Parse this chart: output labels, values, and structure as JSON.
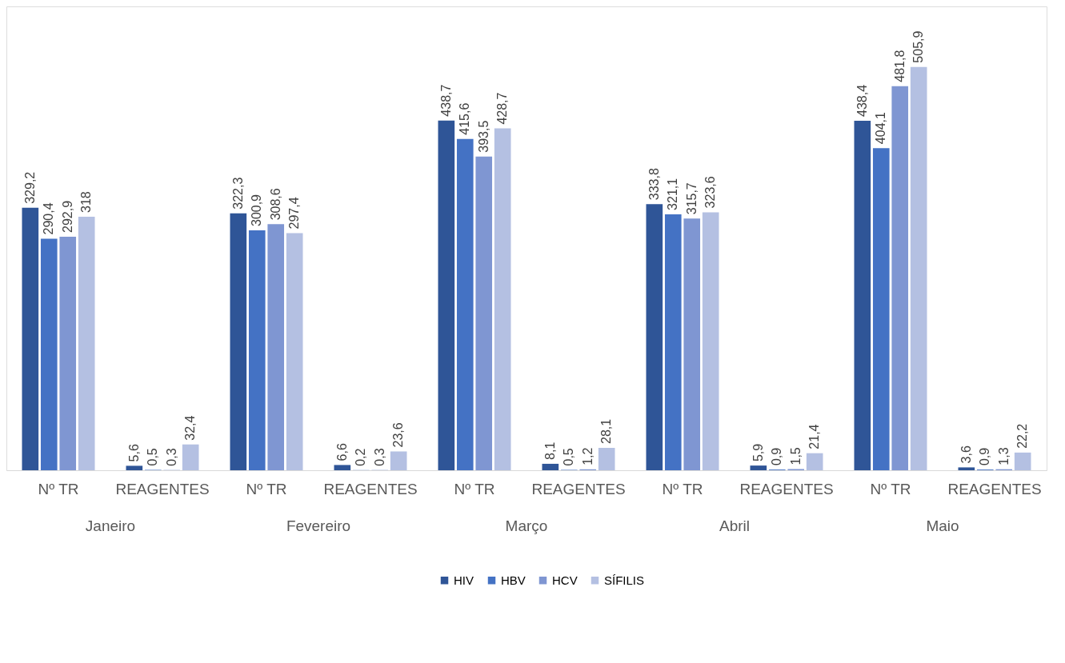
{
  "chart_data": {
    "type": "bar",
    "categories": [
      "Nº TR",
      "REAGENTES",
      "Nº TR",
      "REAGENTES",
      "Nº TR",
      "REAGENTES",
      "Nº TR",
      "REAGENTES",
      "Nº TR",
      "REAGENTES"
    ],
    "series": [
      {
        "name": "HIV",
        "color": "#2f5597",
        "values": [
          329.2,
          5.6,
          322.3,
          6.6,
          438.7,
          8.1,
          333.8,
          5.9,
          438.4,
          3.6
        ],
        "value_labels": [
          "329,2",
          "5,6",
          "322,3",
          "6,6",
          "438,7",
          "8,1",
          "333,8",
          "5,9",
          "438,4",
          "3,6"
        ]
      },
      {
        "name": "HBV",
        "color": "#4472c4",
        "values": [
          290.4,
          0.5,
          300.9,
          0.2,
          415.6,
          0.5,
          321.1,
          0.9,
          404.1,
          0.9
        ],
        "value_labels": [
          "290,4",
          "0,5",
          "300,9",
          "0,2",
          "415,6",
          "0,5",
          "321,1",
          "0,9",
          "404,1",
          "0,9"
        ]
      },
      {
        "name": "HCV",
        "color": "#7f96d2",
        "values": [
          292.9,
          0.3,
          308.6,
          0.3,
          393.5,
          1.2,
          315.7,
          1.5,
          481.8,
          1.3
        ],
        "value_labels": [
          "292,9",
          "0,3",
          "308,6",
          "0,3",
          "393,5",
          "1,2",
          "315,7",
          "1,5",
          "481,8",
          "1,3"
        ]
      },
      {
        "name": "SÍFILIS",
        "color": "#b4c0e2",
        "values": [
          318,
          32.4,
          297.4,
          23.6,
          428.7,
          28.1,
          323.6,
          21.4,
          505.9,
          22.2
        ],
        "value_labels": [
          "318",
          "32,4",
          "297,4",
          "23,6",
          "428,7",
          "28,1",
          "323,6",
          "21,4",
          "505,9",
          "22,2"
        ]
      }
    ],
    "annotations": [
      "Janeiro",
      "Fevereiro",
      "Março",
      "Abril",
      "Maio"
    ],
    "legend": "bottom"
  }
}
